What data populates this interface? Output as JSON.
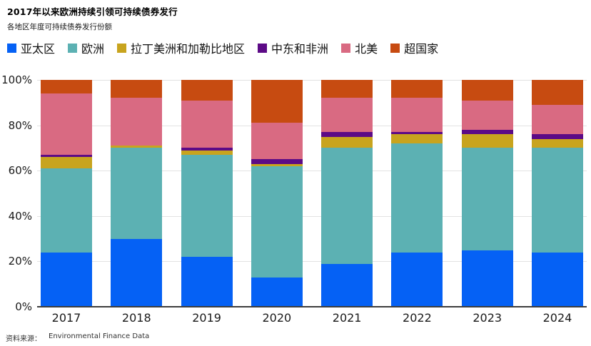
{
  "header": {
    "title": "2017年以来欧洲持续引领可持续债券发行",
    "subtitle": "各地区年度可持续债券发行份额"
  },
  "source": {
    "label": "资料来源：",
    "text": "Environmental Finance Data"
  },
  "chart_data": {
    "type": "bar",
    "stacked": true,
    "unit": "percent",
    "title": "2017年以来欧洲持续引领可持续债券发行",
    "subtitle": "各地区年度可持续债券发行份额",
    "categories": [
      "2017",
      "2018",
      "2019",
      "2020",
      "2021",
      "2022",
      "2023",
      "2024"
    ],
    "series": [
      {
        "name": "亚太区",
        "color": "#0561f5",
        "values": [
          24,
          30,
          22,
          13,
          19,
          24,
          25,
          24
        ]
      },
      {
        "name": "欧洲",
        "color": "#5cb1b3",
        "values": [
          37,
          40,
          45,
          49,
          51,
          48,
          45,
          46
        ]
      },
      {
        "name": "拉丁美洲和加勒比地区",
        "color": "#c8a41e",
        "values": [
          5,
          1,
          2,
          1,
          5,
          4,
          6,
          4
        ]
      },
      {
        "name": "中东和非洲",
        "color": "#5c0a86",
        "values": [
          1,
          0,
          1,
          2,
          2,
          1,
          2,
          2
        ]
      },
      {
        "name": "北美",
        "color": "#d96a82",
        "values": [
          27,
          21,
          21,
          16,
          15,
          15,
          13,
          13
        ]
      },
      {
        "name": "超国家",
        "color": "#c74b11",
        "values": [
          6,
          8,
          9,
          19,
          8,
          8,
          9,
          11
        ]
      }
    ],
    "y_ticks": [
      "100%",
      "80%",
      "60%",
      "40%",
      "20%",
      "0%"
    ],
    "ylim": [
      0,
      100
    ],
    "grid": true,
    "legend_position": "top",
    "axis_color": "#3d3d3d",
    "gridline_color": "#e2e2e2"
  }
}
